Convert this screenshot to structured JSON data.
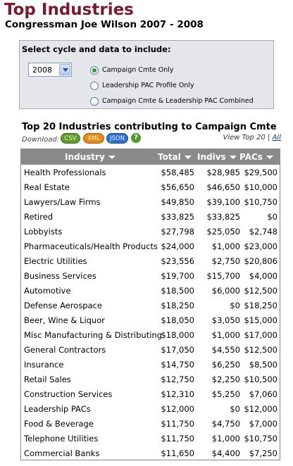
{
  "page": {
    "title": "Top Industries",
    "subtitle": "Congressman Joe Wilson 2007 - 2008"
  },
  "filter": {
    "heading": "Select cycle and data to include:",
    "cycle_selected": "2008",
    "options": [
      {
        "label": "Campaign Cmte Only",
        "checked": true
      },
      {
        "label": "Leadership PAC Profile Only",
        "checked": false
      },
      {
        "label": "Campaign Cmte & Leadership PAC Combined",
        "checked": false
      }
    ]
  },
  "section": {
    "title": "Top 20 Industries contributing to Campaign Cmte",
    "download_label": "Download:",
    "download_buttons": [
      "CSV",
      "XML",
      "JSON"
    ],
    "help_icon": "?",
    "view_text": "View Top 20 |",
    "view_all": "All"
  },
  "table": {
    "headers": [
      "Industry",
      "Total",
      "Indivs",
      "PACs"
    ],
    "rows": [
      [
        "Health Professionals",
        "$58,485",
        "$28,985",
        "$29,500"
      ],
      [
        "Real Estate",
        "$56,650",
        "$46,650",
        "$10,000"
      ],
      [
        "Lawyers/Law Firms",
        "$49,850",
        "$39,100",
        "$10,750"
      ],
      [
        "Retired",
        "$33,825",
        "$33,825",
        "$0"
      ],
      [
        "Lobbyists",
        "$27,798",
        "$25,050",
        "$2,748"
      ],
      [
        "Pharmaceuticals/Health Products",
        "$24,000",
        "$1,000",
        "$23,000"
      ],
      [
        "Electric Utilities",
        "$23,556",
        "$2,750",
        "$20,806"
      ],
      [
        "Business Services",
        "$19,700",
        "$15,700",
        "$4,000"
      ],
      [
        "Automotive",
        "$18,500",
        "$6,000",
        "$12,500"
      ],
      [
        "Defense Aerospace",
        "$18,250",
        "$0",
        "$18,250"
      ],
      [
        "Beer, Wine & Liquor",
        "$18,050",
        "$3,050",
        "$15,000"
      ],
      [
        "Misc Manufacturing & Distributing",
        "$18,000",
        "$1,000",
        "$17,000"
      ],
      [
        "General Contractors",
        "$17,050",
        "$4,550",
        "$12,500"
      ],
      [
        "Insurance",
        "$14,750",
        "$6,250",
        "$8,500"
      ],
      [
        "Retail Sales",
        "$12,750",
        "$2,250",
        "$10,500"
      ],
      [
        "Construction Services",
        "$12,310",
        "$5,250",
        "$7,060"
      ],
      [
        "Leadership PACs",
        "$12,000",
        "$0",
        "$12,000"
      ],
      [
        "Food & Beverage",
        "$11,750",
        "$4,750",
        "$7,000"
      ],
      [
        "Telephone Utilities",
        "$11,750",
        "$1,000",
        "$10,750"
      ],
      [
        "Commercial Banks",
        "$11,650",
        "$4,400",
        "$7,250"
      ]
    ]
  },
  "icons": {
    "select_arrow": "chevron-down-icon",
    "help": "help-icon"
  }
}
